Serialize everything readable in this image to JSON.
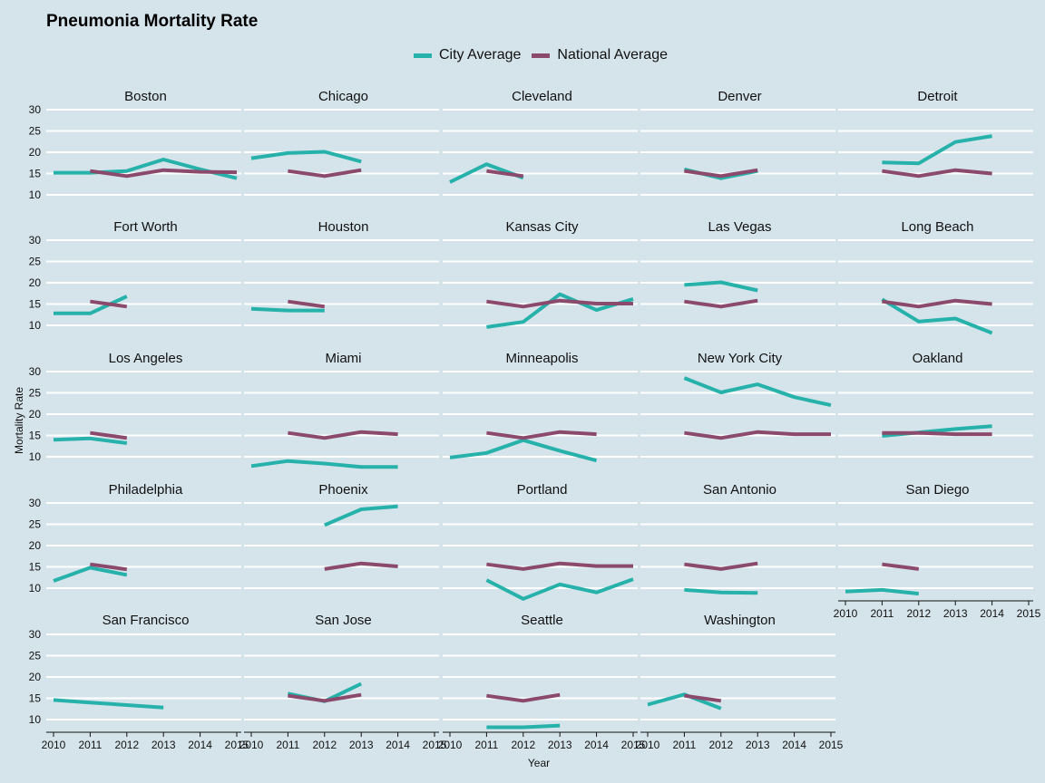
{
  "chart_data": {
    "type": "line",
    "title": "Pneumonia Mortality Rate",
    "xlabel": "Year",
    "ylabel": "Mortality Rate",
    "x_ticks": [
      2010,
      2011,
      2012,
      2013,
      2014,
      2015
    ],
    "y_ticks": [
      10,
      15,
      20,
      25,
      30
    ],
    "xlim": [
      2010,
      2015
    ],
    "ylim": [
      7,
      31
    ],
    "grid": true,
    "legend_position": "top",
    "legend": [
      {
        "name": "City Average",
        "color": "#26b2aa"
      },
      {
        "name": "National Average",
        "color": "#8b4a6b"
      }
    ],
    "panels": [
      {
        "name": "Boston",
        "city": [
          [
            2010,
            15.2
          ],
          [
            2011,
            15.2
          ],
          [
            2012,
            15.6
          ],
          [
            2013,
            18.3
          ],
          [
            2014,
            16.0
          ],
          [
            2015,
            13.9
          ]
        ],
        "national": [
          [
            2011,
            15.6
          ],
          [
            2012,
            14.4
          ],
          [
            2013,
            15.8
          ],
          [
            2014,
            15.4
          ],
          [
            2015,
            15.3
          ]
        ]
      },
      {
        "name": "Chicago",
        "city": [
          [
            2010,
            18.6
          ],
          [
            2011,
            19.8
          ],
          [
            2012,
            20.1
          ],
          [
            2013,
            17.8
          ]
        ],
        "national": [
          [
            2011,
            15.6
          ],
          [
            2012,
            14.4
          ],
          [
            2013,
            15.8
          ]
        ]
      },
      {
        "name": "Cleveland",
        "city": [
          [
            2010,
            13.0
          ],
          [
            2011,
            17.2
          ],
          [
            2012,
            14.0
          ]
        ],
        "national": [
          [
            2011,
            15.6
          ],
          [
            2012,
            14.4
          ]
        ]
      },
      {
        "name": "Denver",
        "city": [
          [
            2011,
            16.0
          ],
          [
            2012,
            13.9
          ],
          [
            2013,
            15.6
          ]
        ],
        "national": [
          [
            2011,
            15.6
          ],
          [
            2012,
            14.4
          ],
          [
            2013,
            15.8
          ]
        ]
      },
      {
        "name": "Detroit",
        "city": [
          [
            2011,
            17.6
          ],
          [
            2012,
            17.4
          ],
          [
            2013,
            22.4
          ],
          [
            2014,
            23.8
          ]
        ],
        "national": [
          [
            2011,
            15.6
          ],
          [
            2012,
            14.4
          ],
          [
            2013,
            15.8
          ],
          [
            2014,
            15.0
          ]
        ]
      },
      {
        "name": "Fort Worth",
        "city": [
          [
            2010,
            12.8
          ],
          [
            2011,
            12.8
          ],
          [
            2012,
            16.8
          ]
        ],
        "national": [
          [
            2011,
            15.6
          ],
          [
            2012,
            14.4
          ]
        ]
      },
      {
        "name": "Houston",
        "city": [
          [
            2010,
            13.9
          ],
          [
            2011,
            13.5
          ],
          [
            2012,
            13.5
          ]
        ],
        "national": [
          [
            2011,
            15.6
          ],
          [
            2012,
            14.4
          ]
        ]
      },
      {
        "name": "Kansas City",
        "city": [
          [
            2011,
            9.6
          ],
          [
            2012,
            10.8
          ],
          [
            2013,
            17.3
          ],
          [
            2014,
            13.6
          ],
          [
            2015,
            16.2
          ]
        ],
        "national": [
          [
            2011,
            15.6
          ],
          [
            2012,
            14.4
          ],
          [
            2013,
            15.8
          ],
          [
            2014,
            15.1
          ],
          [
            2015,
            15.1
          ]
        ]
      },
      {
        "name": "Las Vegas",
        "city": [
          [
            2011,
            19.5
          ],
          [
            2012,
            20.1
          ],
          [
            2013,
            18.2
          ]
        ],
        "national": [
          [
            2011,
            15.6
          ],
          [
            2012,
            14.4
          ],
          [
            2013,
            15.8
          ]
        ]
      },
      {
        "name": "Long Beach",
        "city": [
          [
            2011,
            16.1
          ],
          [
            2012,
            10.9
          ],
          [
            2013,
            11.6
          ],
          [
            2014,
            8.2
          ]
        ],
        "national": [
          [
            2011,
            15.6
          ],
          [
            2012,
            14.4
          ],
          [
            2013,
            15.8
          ],
          [
            2014,
            15.0
          ]
        ]
      },
      {
        "name": "Los Angeles",
        "city": [
          [
            2010,
            14.0
          ],
          [
            2011,
            14.3
          ],
          [
            2012,
            13.2
          ]
        ],
        "national": [
          [
            2011,
            15.6
          ],
          [
            2012,
            14.4
          ]
        ]
      },
      {
        "name": "Miami",
        "city": [
          [
            2010,
            7.8
          ],
          [
            2011,
            9.0
          ],
          [
            2012,
            8.4
          ],
          [
            2013,
            7.6
          ],
          [
            2014,
            7.6
          ]
        ],
        "national": [
          [
            2011,
            15.6
          ],
          [
            2012,
            14.4
          ],
          [
            2013,
            15.8
          ],
          [
            2014,
            15.3
          ]
        ]
      },
      {
        "name": "Minneapolis",
        "city": [
          [
            2010,
            9.8
          ],
          [
            2011,
            10.9
          ],
          [
            2012,
            13.9
          ],
          [
            2013,
            11.4
          ],
          [
            2014,
            9.1
          ]
        ],
        "national": [
          [
            2011,
            15.6
          ],
          [
            2012,
            14.4
          ],
          [
            2013,
            15.8
          ],
          [
            2014,
            15.3
          ]
        ]
      },
      {
        "name": "New York City",
        "city": [
          [
            2011,
            28.5
          ],
          [
            2012,
            25.1
          ],
          [
            2013,
            27.0
          ],
          [
            2014,
            24.0
          ],
          [
            2015,
            22.1
          ]
        ],
        "national": [
          [
            2011,
            15.6
          ],
          [
            2012,
            14.4
          ],
          [
            2013,
            15.8
          ],
          [
            2014,
            15.3
          ],
          [
            2015,
            15.3
          ]
        ]
      },
      {
        "name": "Oakland",
        "city": [
          [
            2011,
            14.9
          ],
          [
            2012,
            15.7
          ],
          [
            2013,
            16.5
          ],
          [
            2014,
            17.2
          ]
        ],
        "national": [
          [
            2011,
            15.6
          ],
          [
            2012,
            15.6
          ],
          [
            2013,
            15.3
          ],
          [
            2014,
            15.3
          ]
        ]
      },
      {
        "name": "Philadelphia",
        "city": [
          [
            2010,
            11.7
          ],
          [
            2011,
            14.8
          ],
          [
            2012,
            13.1
          ]
        ],
        "national": [
          [
            2011,
            15.6
          ],
          [
            2012,
            14.4
          ]
        ]
      },
      {
        "name": "Phoenix",
        "city": [
          [
            2012,
            24.8
          ],
          [
            2013,
            28.5
          ],
          [
            2014,
            29.2
          ]
        ],
        "national": [
          [
            2012,
            14.5
          ],
          [
            2013,
            15.8
          ],
          [
            2014,
            15.1
          ]
        ]
      },
      {
        "name": "Portland",
        "city": [
          [
            2011,
            11.9
          ],
          [
            2012,
            7.5
          ],
          [
            2013,
            10.9
          ],
          [
            2014,
            9.0
          ],
          [
            2015,
            12.1
          ]
        ],
        "national": [
          [
            2011,
            15.6
          ],
          [
            2012,
            14.5
          ],
          [
            2013,
            15.8
          ],
          [
            2014,
            15.2
          ],
          [
            2015,
            15.2
          ]
        ]
      },
      {
        "name": "San Antonio",
        "city": [
          [
            2011,
            9.6
          ],
          [
            2012,
            9.0
          ],
          [
            2013,
            8.9
          ]
        ],
        "national": [
          [
            2011,
            15.6
          ],
          [
            2012,
            14.5
          ],
          [
            2013,
            15.8
          ]
        ]
      },
      {
        "name": "San Diego",
        "city": [
          [
            2010,
            9.2
          ],
          [
            2011,
            9.6
          ],
          [
            2012,
            8.7
          ]
        ],
        "national": [
          [
            2011,
            15.6
          ],
          [
            2012,
            14.5
          ]
        ]
      },
      {
        "name": "San Francisco",
        "city": [
          [
            2010,
            14.6
          ],
          [
            2011,
            14.0
          ],
          [
            2012,
            13.4
          ],
          [
            2013,
            12.8
          ]
        ],
        "national": []
      },
      {
        "name": "San Jose",
        "city": [
          [
            2011,
            16.1
          ],
          [
            2012,
            14.3
          ],
          [
            2013,
            18.4
          ]
        ],
        "national": [
          [
            2011,
            15.6
          ],
          [
            2012,
            14.4
          ],
          [
            2013,
            15.8
          ]
        ]
      },
      {
        "name": "Seattle",
        "city": [
          [
            2011,
            8.2
          ],
          [
            2012,
            8.2
          ],
          [
            2013,
            8.6
          ]
        ],
        "national": [
          [
            2011,
            15.6
          ],
          [
            2012,
            14.4
          ],
          [
            2013,
            15.8
          ]
        ]
      },
      {
        "name": "Washington",
        "city": [
          [
            2010,
            13.5
          ],
          [
            2011,
            15.9
          ],
          [
            2012,
            12.6
          ]
        ],
        "national": [
          [
            2011,
            15.6
          ],
          [
            2012,
            14.4
          ]
        ]
      }
    ]
  }
}
